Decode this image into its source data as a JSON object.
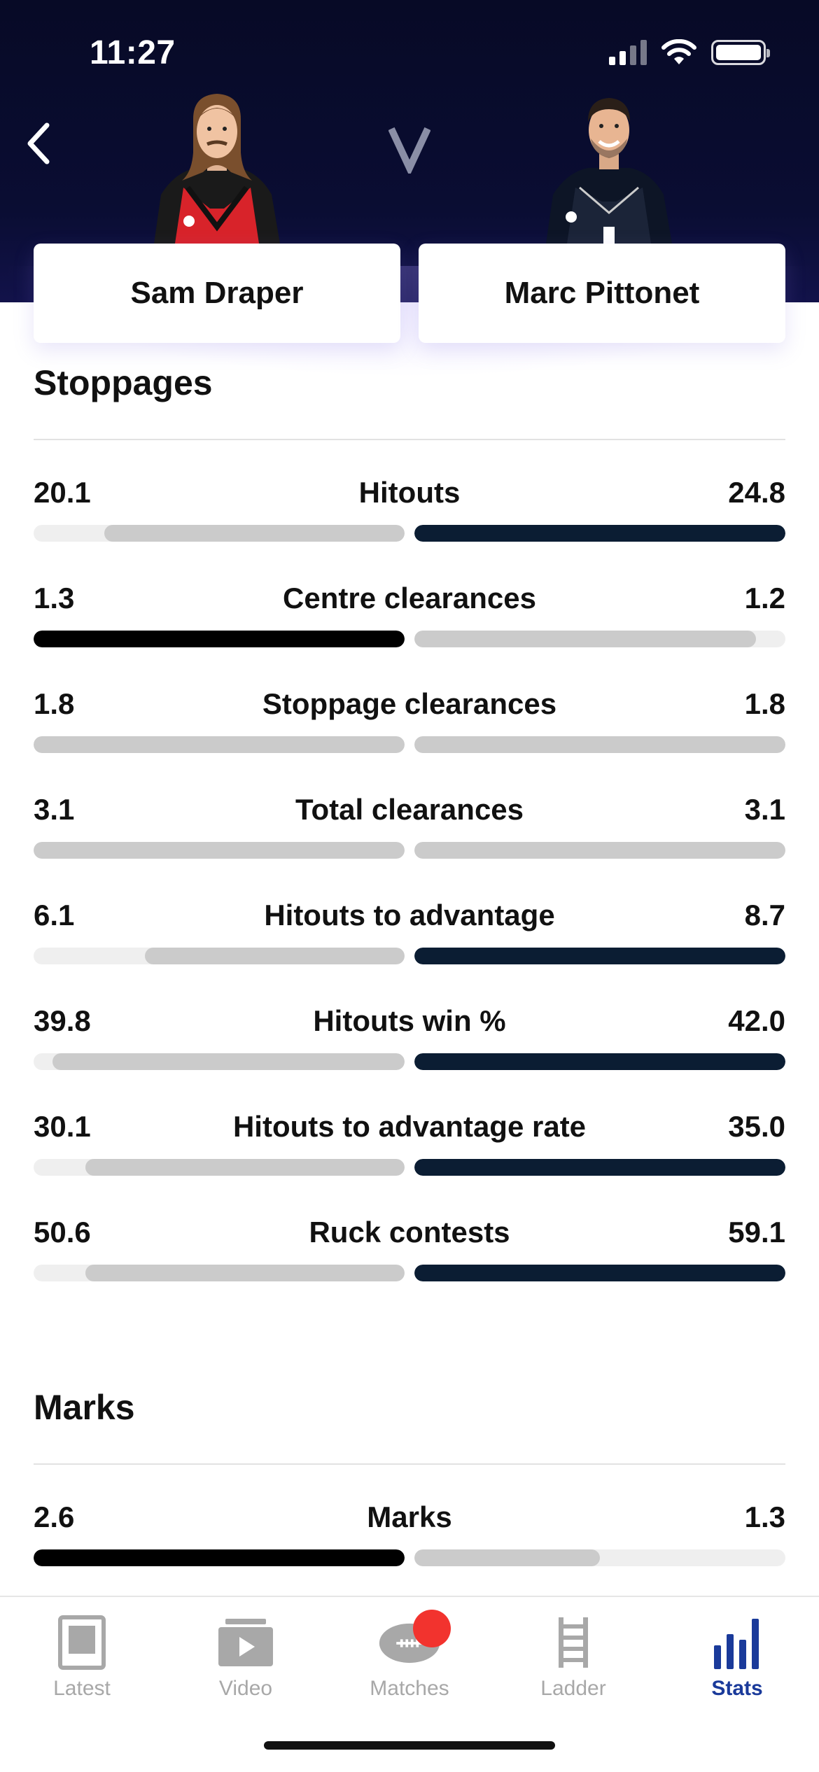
{
  "status_bar": {
    "time": "11:27"
  },
  "colors": {
    "header_bg": "#070a26",
    "left_bar_strong": "#000000",
    "right_bar_strong": "#0b1d33",
    "bar_muted": "#cbcbcb",
    "bar_track": "#efefef",
    "active_tab": "#1a3a9a",
    "notification": "#f2332e"
  },
  "players": {
    "left": {
      "name": "Sam Draper"
    },
    "right": {
      "name": "Marc Pittonet"
    }
  },
  "sections": [
    {
      "title": "Stoppages",
      "stats": [
        {
          "label": "Hitouts",
          "left": "20.1",
          "right": "24.8",
          "left_fill": 0.81,
          "right_fill": 1.0,
          "left_style": "muted",
          "right_style": "strong"
        },
        {
          "label": "Centre clearances",
          "left": "1.3",
          "right": "1.2",
          "left_fill": 1.0,
          "right_fill": 0.92,
          "left_style": "strong",
          "right_style": "muted"
        },
        {
          "label": "Stoppage clearances",
          "left": "1.8",
          "right": "1.8",
          "left_fill": 1.0,
          "right_fill": 1.0,
          "left_style": "muted",
          "right_style": "muted"
        },
        {
          "label": "Total clearances",
          "left": "3.1",
          "right": "3.1",
          "left_fill": 1.0,
          "right_fill": 1.0,
          "left_style": "muted",
          "right_style": "muted"
        },
        {
          "label": "Hitouts to advantage",
          "left": "6.1",
          "right": "8.7",
          "left_fill": 0.7,
          "right_fill": 1.0,
          "left_style": "muted",
          "right_style": "strong"
        },
        {
          "label": "Hitouts win %",
          "left": "39.8",
          "right": "42.0",
          "left_fill": 0.95,
          "right_fill": 1.0,
          "left_style": "muted",
          "right_style": "strong"
        },
        {
          "label": "Hitouts to advantage rate",
          "left": "30.1",
          "right": "35.0",
          "left_fill": 0.86,
          "right_fill": 1.0,
          "left_style": "muted",
          "right_style": "strong"
        },
        {
          "label": "Ruck contests",
          "left": "50.6",
          "right": "59.1",
          "left_fill": 0.86,
          "right_fill": 1.0,
          "left_style": "muted",
          "right_style": "strong"
        }
      ]
    },
    {
      "title": "Marks",
      "stats": [
        {
          "label": "Marks",
          "left": "2.6",
          "right": "1.3",
          "left_fill": 1.0,
          "right_fill": 0.5,
          "left_style": "strong",
          "right_style": "muted"
        }
      ]
    }
  ],
  "tabbar": {
    "tabs": [
      {
        "label": "Latest",
        "icon": "news-icon",
        "active": false
      },
      {
        "label": "Video",
        "icon": "video-icon",
        "active": false
      },
      {
        "label": "Matches",
        "icon": "football-icon",
        "active": false
      },
      {
        "label": "Ladder",
        "icon": "ladder-icon",
        "active": false
      },
      {
        "label": "Stats",
        "icon": "stats-icon",
        "active": true
      }
    ]
  }
}
